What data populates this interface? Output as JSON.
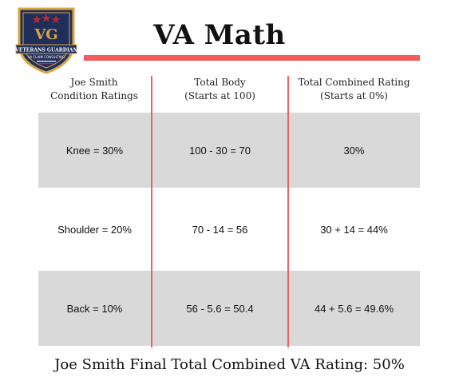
{
  "logo": {
    "name": "veterans-guardian-logo",
    "line1": "VETERANS GUARDIAN",
    "line2": "VA CLAIM CONSULTING",
    "colors": {
      "navy": "#1f2f5c",
      "gold": "#d9a441",
      "red": "#c0282d"
    }
  },
  "title": "VA Math",
  "columns": [
    {
      "line1": "Joe Smith",
      "line2": "Condition Ratings"
    },
    {
      "line1": "Total Body",
      "line2": "(Starts at 100)"
    },
    {
      "line1": "Total Combined Rating",
      "line2": "(Starts at 0%)"
    }
  ],
  "rows": [
    {
      "condition": "Knee = 30%",
      "total_body": "100 - 30 = 70",
      "combined": "30%"
    },
    {
      "condition": "Shoulder = 20%",
      "total_body": "70 - 14 = 56",
      "combined": "30 + 14 = 44%"
    },
    {
      "condition": "Back = 10%",
      "total_body": "56 - 5.6 = 50.4",
      "combined": "44 + 5.6 = 49.6%"
    }
  ],
  "footer": "Joe Smith Final Total Combined VA Rating: 50%",
  "colors": {
    "accent": "#f25c5c",
    "divider": "#e86464",
    "shade": "#d9d9d9"
  }
}
